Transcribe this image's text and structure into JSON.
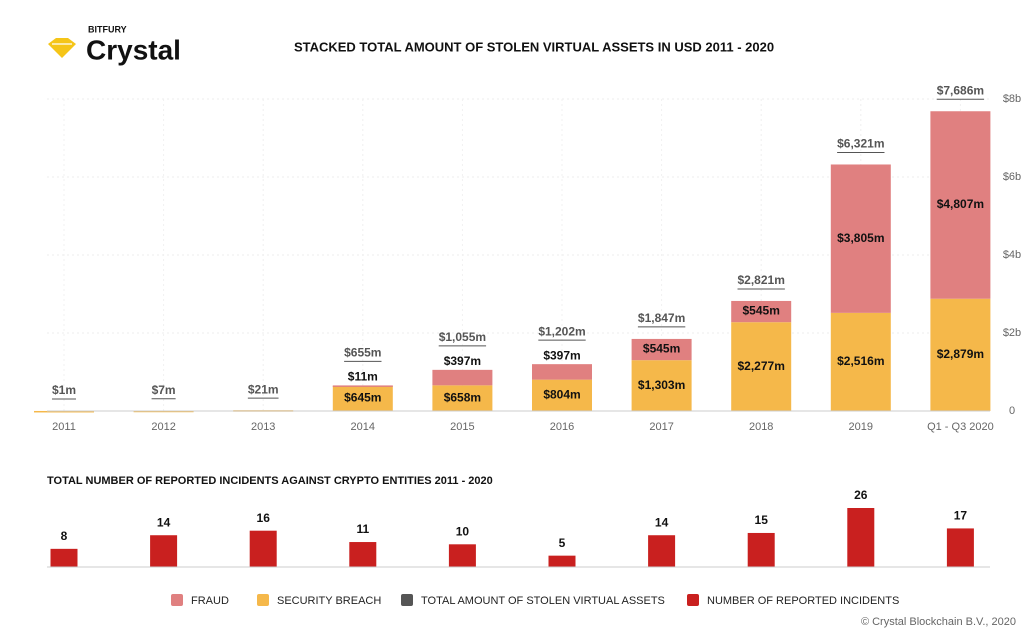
{
  "header": {
    "brand": "BITFURY",
    "logo": "Crystal"
  },
  "footer": "© Crystal Blockchain B.V., 2020",
  "chart_data": [
    {
      "type": "stacked-bar",
      "title": "STACKED TOTAL AMOUNT OF STOLEN VIRTUAL ASSETS IN USD 2011 - 2020",
      "categories": [
        "2011",
        "2012",
        "2013",
        "2014",
        "2015",
        "2016",
        "2017",
        "2018",
        "2019",
        "Q1 - Q3 2020"
      ],
      "series": [
        {
          "name": "SECURITY BREACH",
          "color": "#f5b84a",
          "values": [
            1,
            7,
            21,
            645,
            658,
            804,
            1303,
            2277,
            2516,
            2879
          ],
          "value_labels": [
            null,
            null,
            null,
            "$645m",
            "$658m",
            "$804m",
            "$1,303m",
            "$2,277m",
            "$2,516m",
            "$2,879m"
          ]
        },
        {
          "name": "FRAUD",
          "color": "#e08080",
          "values": [
            null,
            null,
            null,
            11,
            397,
            397,
            545,
            545,
            3805,
            4807
          ],
          "value_labels": [
            null,
            null,
            null,
            "$11m",
            "$397m",
            "$397m",
            "$545m",
            "$545m",
            "$3,805m",
            "$4,807m"
          ]
        }
      ],
      "total": {
        "name": "TOTAL AMOUNT OF STOLEN VIRTUAL ASSETS",
        "color": "#555555",
        "values": [
          1,
          7,
          21,
          655,
          1055,
          1202,
          1847,
          2821,
          6321,
          7686
        ],
        "value_labels": [
          "$1m",
          "$7m",
          "$21m",
          "$655m",
          "$1,055m",
          "$1,202m",
          "$1,847m",
          "$2,821m",
          "$6,321m",
          "$7,686m"
        ]
      },
      "ylim": [
        0,
        8000
      ],
      "yticks": [
        0,
        {
          "value": 2000,
          "label": "$2b"
        },
        {
          "value": 4000,
          "label": "$4b"
        },
        {
          "value": 6000,
          "label": "$6b"
        },
        {
          "value": 8000,
          "label": "$8b"
        }
      ],
      "grid": true
    },
    {
      "type": "bar",
      "title": "TOTAL NUMBER OF REPORTED INCIDENTS AGAINST CRYPTO ENTITIES 2011 - 2020",
      "series": [
        {
          "name": "NUMBER OF REPORTED INCIDENTS",
          "color": "#c9201f",
          "values": [
            8,
            14,
            16,
            11,
            10,
            5,
            14,
            15,
            26,
            17
          ]
        }
      ]
    }
  ]
}
